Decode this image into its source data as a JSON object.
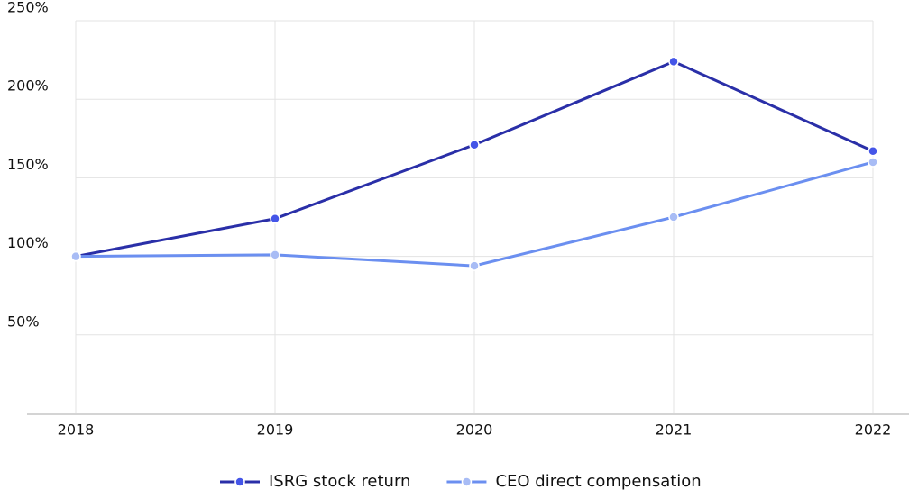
{
  "chart_data": {
    "type": "line",
    "categories": [
      "2018",
      "2019",
      "2020",
      "2021",
      "2022"
    ],
    "series": [
      {
        "name": "ISRG stock return",
        "color": "#2a2fa8",
        "marker_color": "#4455e8",
        "values": [
          100,
          124,
          171,
          224,
          167
        ]
      },
      {
        "name": "CEO direct compensation",
        "color": "#6b8ff0",
        "marker_color": "#a8bcf5",
        "values": [
          100,
          101,
          94,
          125,
          160
        ]
      }
    ],
    "ylim": [
      0,
      250
    ],
    "yticks": [
      {
        "value": 50,
        "label": "50%"
      },
      {
        "value": 100,
        "label": "100%"
      },
      {
        "value": 150,
        "label": "150%"
      },
      {
        "value": 200,
        "label": "200%"
      },
      {
        "value": 250,
        "label": "250%"
      }
    ],
    "grid": true
  }
}
